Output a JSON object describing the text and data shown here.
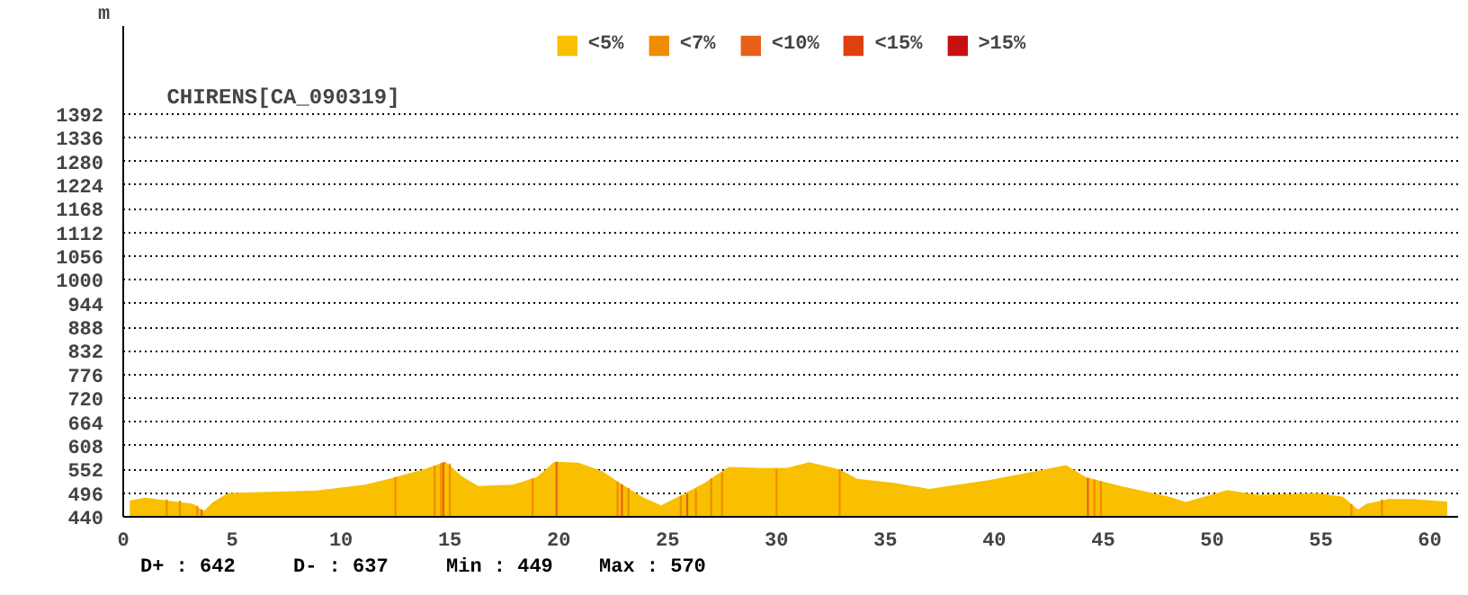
{
  "chart_data": {
    "type": "area",
    "title": "CHIRENS[CA_090319]",
    "ylabel": "m",
    "xlim": [
      0,
      61.3
    ],
    "ylim": [
      440,
      1600
    ],
    "xticks": [
      0,
      5,
      10,
      15,
      20,
      25,
      30,
      35,
      40,
      45,
      50,
      55,
      60
    ],
    "yticks": [
      440,
      496,
      552,
      608,
      664,
      720,
      776,
      832,
      888,
      944,
      1000,
      1056,
      1112,
      1168,
      1224,
      1280,
      1336,
      1392
    ],
    "grid": "y",
    "legend": "top",
    "annotations": [
      "D+ : 642",
      "D- : 637",
      "Min : 449",
      "Max : 570"
    ],
    "series": [
      {
        "name": "<5%",
        "color": "#f8c000",
        "x": [
          0.3,
          1.0,
          3.2,
          3.7,
          4.1,
          4.8,
          8.9,
          11.1,
          12.2,
          13.8,
          14.8,
          15.6,
          16.3,
          17.9,
          19.0,
          19.8,
          20.9,
          22.0,
          22.8,
          23.9,
          24.7,
          25.5,
          26.7,
          27.8,
          29.4,
          30.5,
          31.5,
          32.9,
          33.7,
          35.4,
          37.0,
          39.8,
          41.9,
          43.3,
          44.2,
          45.8,
          48.0,
          48.8,
          50.7,
          52.1,
          54.8,
          56.0,
          56.7,
          57.1,
          58.1,
          59.2,
          60.8
        ],
        "values": [
          478,
          485,
          471,
          454,
          474,
          496,
          502,
          516,
          530,
          552,
          570,
          534,
          513,
          516,
          534,
          570,
          568,
          548,
          520,
          485,
          467,
          488,
          520,
          558,
          555,
          556,
          569,
          552,
          530,
          520,
          506,
          527,
          548,
          562,
          534,
          513,
          488,
          475,
          503,
          492,
          496,
          488,
          457,
          471,
          482,
          482,
          476
        ]
      },
      {
        "name": "<7%",
        "color": "#f08c00",
        "type": "bar",
        "x": [
          2.0,
          2.6,
          3.4,
          12.5,
          14.3,
          14.6,
          15.0,
          18.8,
          22.7,
          23.2,
          25.6,
          26.3,
          27.0,
          27.5,
          30.0,
          32.9,
          44.6,
          44.9,
          56.4,
          57.8
        ],
        "values": [
          481,
          478,
          466,
          534,
          561,
          567,
          566,
          531,
          523,
          508,
          490,
          505,
          531,
          545,
          553,
          552,
          528,
          524,
          470,
          481
        ]
      },
      {
        "name": "<10%",
        "color": "#e8601a",
        "type": "bar",
        "x": [
          3.6,
          14.7,
          19.9,
          22.9,
          25.9,
          44.3
        ],
        "values": [
          457,
          569,
          570,
          517,
          495,
          532
        ]
      },
      {
        "name": "<15%",
        "color": "#e04010",
        "type": "bar"
      },
      {
        "name": ">15%",
        "color": "#c81010",
        "type": "bar"
      }
    ]
  }
}
